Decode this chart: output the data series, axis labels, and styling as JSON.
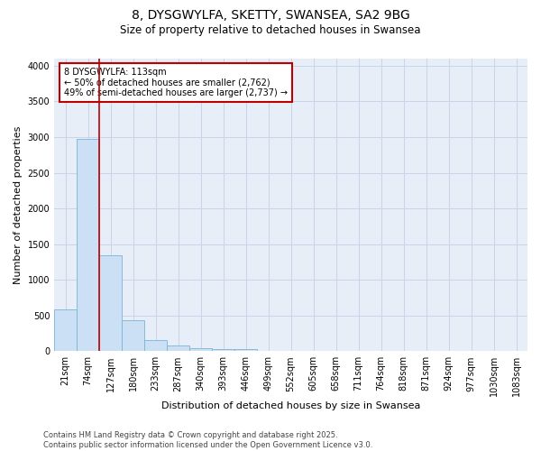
{
  "title_line1": "8, DYSGWYLFA, SKETTY, SWANSEA, SA2 9BG",
  "title_line2": "Size of property relative to detached houses in Swansea",
  "xlabel": "Distribution of detached houses by size in Swansea",
  "ylabel": "Number of detached properties",
  "footnote": "Contains HM Land Registry data © Crown copyright and database right 2025.\nContains public sector information licensed under the Open Government Licence v3.0.",
  "categories": [
    "21sqm",
    "74sqm",
    "127sqm",
    "180sqm",
    "233sqm",
    "287sqm",
    "340sqm",
    "393sqm",
    "446sqm",
    "499sqm",
    "552sqm",
    "605sqm",
    "658sqm",
    "711sqm",
    "764sqm",
    "818sqm",
    "871sqm",
    "924sqm",
    "977sqm",
    "1030sqm",
    "1083sqm"
  ],
  "values": [
    580,
    2980,
    1340,
    430,
    150,
    75,
    45,
    30,
    25,
    0,
    0,
    0,
    0,
    0,
    0,
    0,
    0,
    0,
    0,
    0,
    0
  ],
  "bar_color": "#cce0f5",
  "bar_edge_color": "#7ab4d8",
  "grid_color": "#c8d4e8",
  "background_color": "#e8eef8",
  "vline_color": "#bb0000",
  "annotation_text": "8 DYSGWYLFA: 113sqm\n← 50% of detached houses are smaller (2,762)\n49% of semi-detached houses are larger (2,737) →",
  "annotation_box_color": "#bb0000",
  "ylim": [
    0,
    4100
  ],
  "yticks": [
    0,
    500,
    1000,
    1500,
    2000,
    2500,
    3000,
    3500,
    4000
  ],
  "title_fontsize": 10,
  "subtitle_fontsize": 8.5,
  "label_fontsize": 8,
  "tick_fontsize": 7,
  "footnote_fontsize": 6
}
